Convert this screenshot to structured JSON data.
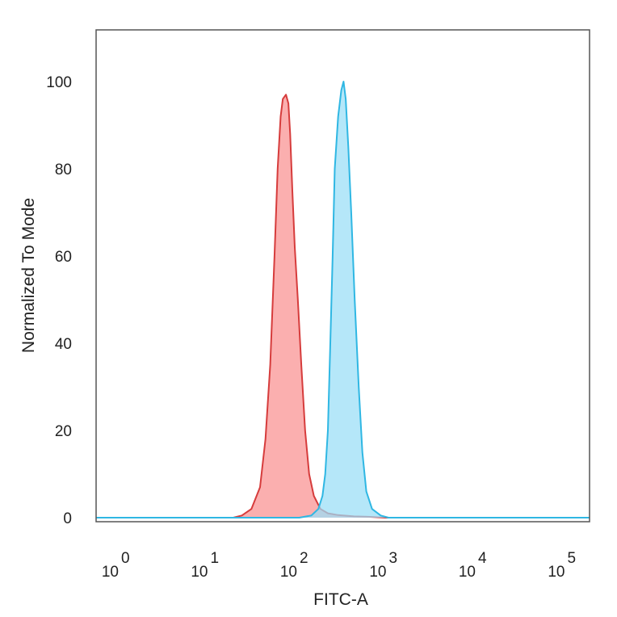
{
  "chart_data": {
    "type": "area",
    "xlabel": "FITC-A",
    "ylabel": "Normalized To Mode",
    "x_scale": "log",
    "xlim": [
      0.3,
      200000
    ],
    "ylim": [
      0,
      105
    ],
    "grid": false,
    "x_ticks": [
      {
        "base": "10",
        "exp": "0",
        "value": 1
      },
      {
        "base": "10",
        "exp": "1",
        "value": 10
      },
      {
        "base": "10",
        "exp": "2",
        "value": 100
      },
      {
        "base": "10",
        "exp": "3",
        "value": 1000
      },
      {
        "base": "10",
        "exp": "4",
        "value": 10000
      },
      {
        "base": "10",
        "exp": "5",
        "value": 100000
      }
    ],
    "y_ticks": [
      {
        "label": "0",
        "value": 0
      },
      {
        "label": "20",
        "value": 20
      },
      {
        "label": "40",
        "value": 40
      },
      {
        "label": "60",
        "value": 60
      },
      {
        "label": "80",
        "value": 80
      },
      {
        "label": "100",
        "value": 100
      }
    ],
    "series": [
      {
        "color": "#d63c3c",
        "fill": "#f99090",
        "points": [
          [
            0.3,
            0
          ],
          [
            20,
            0
          ],
          [
            25,
            0.5
          ],
          [
            32,
            2
          ],
          [
            40,
            7
          ],
          [
            46,
            18
          ],
          [
            52,
            35
          ],
          [
            58,
            60
          ],
          [
            63,
            80
          ],
          [
            68,
            92
          ],
          [
            72,
            96
          ],
          [
            78,
            97
          ],
          [
            83,
            95
          ],
          [
            87,
            88
          ],
          [
            92,
            75
          ],
          [
            98,
            62
          ],
          [
            106,
            50
          ],
          [
            116,
            35
          ],
          [
            128,
            20
          ],
          [
            142,
            10
          ],
          [
            160,
            5
          ],
          [
            190,
            2
          ],
          [
            230,
            1
          ],
          [
            300,
            0.6
          ],
          [
            450,
            0.3
          ],
          [
            650,
            0.2
          ],
          [
            1000,
            0
          ],
          [
            200000,
            0
          ]
        ]
      },
      {
        "color": "#2fb7e3",
        "fill": "#98def6",
        "points": [
          [
            0.3,
            0
          ],
          [
            110,
            0
          ],
          [
            150,
            0.5
          ],
          [
            180,
            2
          ],
          [
            200,
            5
          ],
          [
            215,
            10
          ],
          [
            230,
            20
          ],
          [
            245,
            40
          ],
          [
            260,
            60
          ],
          [
            275,
            80
          ],
          [
            300,
            92
          ],
          [
            325,
            98
          ],
          [
            345,
            100
          ],
          [
            365,
            96
          ],
          [
            390,
            85
          ],
          [
            420,
            70
          ],
          [
            460,
            50
          ],
          [
            510,
            30
          ],
          [
            560,
            15
          ],
          [
            620,
            6
          ],
          [
            720,
            2
          ],
          [
            900,
            0.5
          ],
          [
            1100,
            0
          ],
          [
            200000,
            0
          ]
        ]
      }
    ]
  }
}
